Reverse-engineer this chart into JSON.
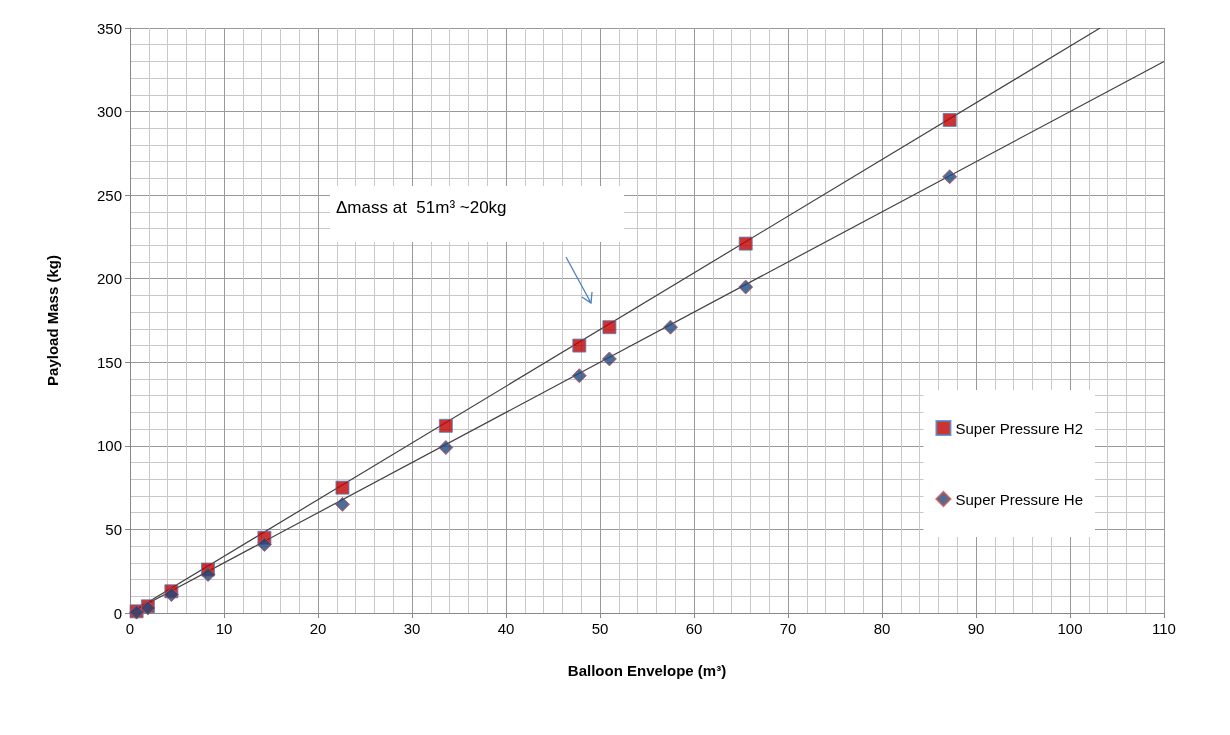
{
  "chart_data": {
    "type": "scatter",
    "xlabel": "Balloon Envelope (m³)",
    "ylabel": "Payload Mass (kg)",
    "xlim": [
      0,
      110
    ],
    "xticks": [
      0,
      10,
      20,
      30,
      40,
      50,
      60,
      70,
      80,
      90,
      100,
      110
    ],
    "ylim": [
      0,
      350
    ],
    "yticks": [
      0,
      50,
      100,
      150,
      200,
      250,
      300,
      350
    ],
    "grid": true,
    "legend": "right",
    "annotations": [
      "Δmass at  51m³ ~20kg"
    ],
    "series": [
      {
        "name": "Super Pressure H2",
        "color": "#c00000",
        "marker": "square",
        "x": [
          0.7,
          1.9,
          4.4,
          8.3,
          14.3,
          22.6,
          33.6,
          47.8,
          51,
          65.5,
          87.2
        ],
        "values": [
          1,
          4,
          13,
          26,
          45,
          75,
          112,
          160,
          171,
          221,
          295
        ]
      },
      {
        "name": "Super Pressure He",
        "color": "#1f497d",
        "marker": "diamond",
        "x": [
          0.7,
          1.9,
          4.4,
          8.3,
          14.3,
          22.6,
          33.6,
          47.8,
          51,
          57.5,
          65.5,
          87.2
        ],
        "values": [
          0.5,
          3,
          11,
          23,
          41,
          65,
          99,
          142,
          152,
          171,
          195,
          261
        ]
      },
      {
        "type": "line",
        "color": "#404040",
        "marker": "none",
        "x": [
          0,
          103.2
        ],
        "values": [
          0,
          350
        ]
      },
      {
        "type": "line",
        "color": "#404040",
        "marker": "none",
        "x": [
          0,
          110
        ],
        "values": [
          0,
          330
        ]
      }
    ]
  }
}
